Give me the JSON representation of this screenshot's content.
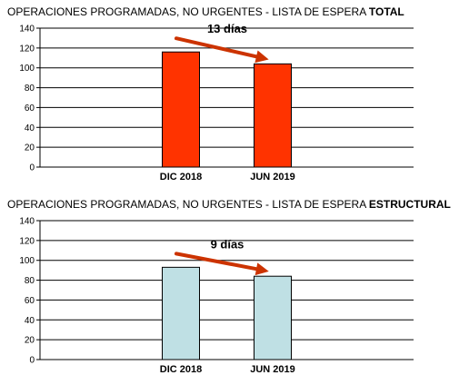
{
  "chart_data": [
    {
      "type": "bar",
      "title": "OPERACIONES PROGRAMADAS, NO URGENTES - LISTA DE ESPERA",
      "title_bold": "TOTAL",
      "categories": [
        "DIC 2018",
        "JUN 2019"
      ],
      "values": [
        116,
        104
      ],
      "ylim": [
        0,
        140
      ],
      "yticks": [
        0,
        20,
        40,
        60,
        80,
        100,
        120,
        140
      ],
      "grid": true,
      "bar_color": "#ff3300",
      "annotation": {
        "text": "13 días",
        "arrow_color": "#cc3300"
      }
    },
    {
      "type": "bar",
      "title": "OPERACIONES PROGRAMADAS, NO URGENTES - LISTA DE ESPERA",
      "title_bold": "ESTRUCTURAL",
      "categories": [
        "DIC 2018",
        "JUN 2019"
      ],
      "values": [
        93,
        84
      ],
      "ylim": [
        0,
        140
      ],
      "yticks": [
        0,
        20,
        40,
        60,
        80,
        100,
        120,
        140
      ],
      "grid": true,
      "bar_color": "#bfe0e4",
      "annotation": {
        "text": "9 días",
        "arrow_color": "#cc3300"
      }
    }
  ]
}
